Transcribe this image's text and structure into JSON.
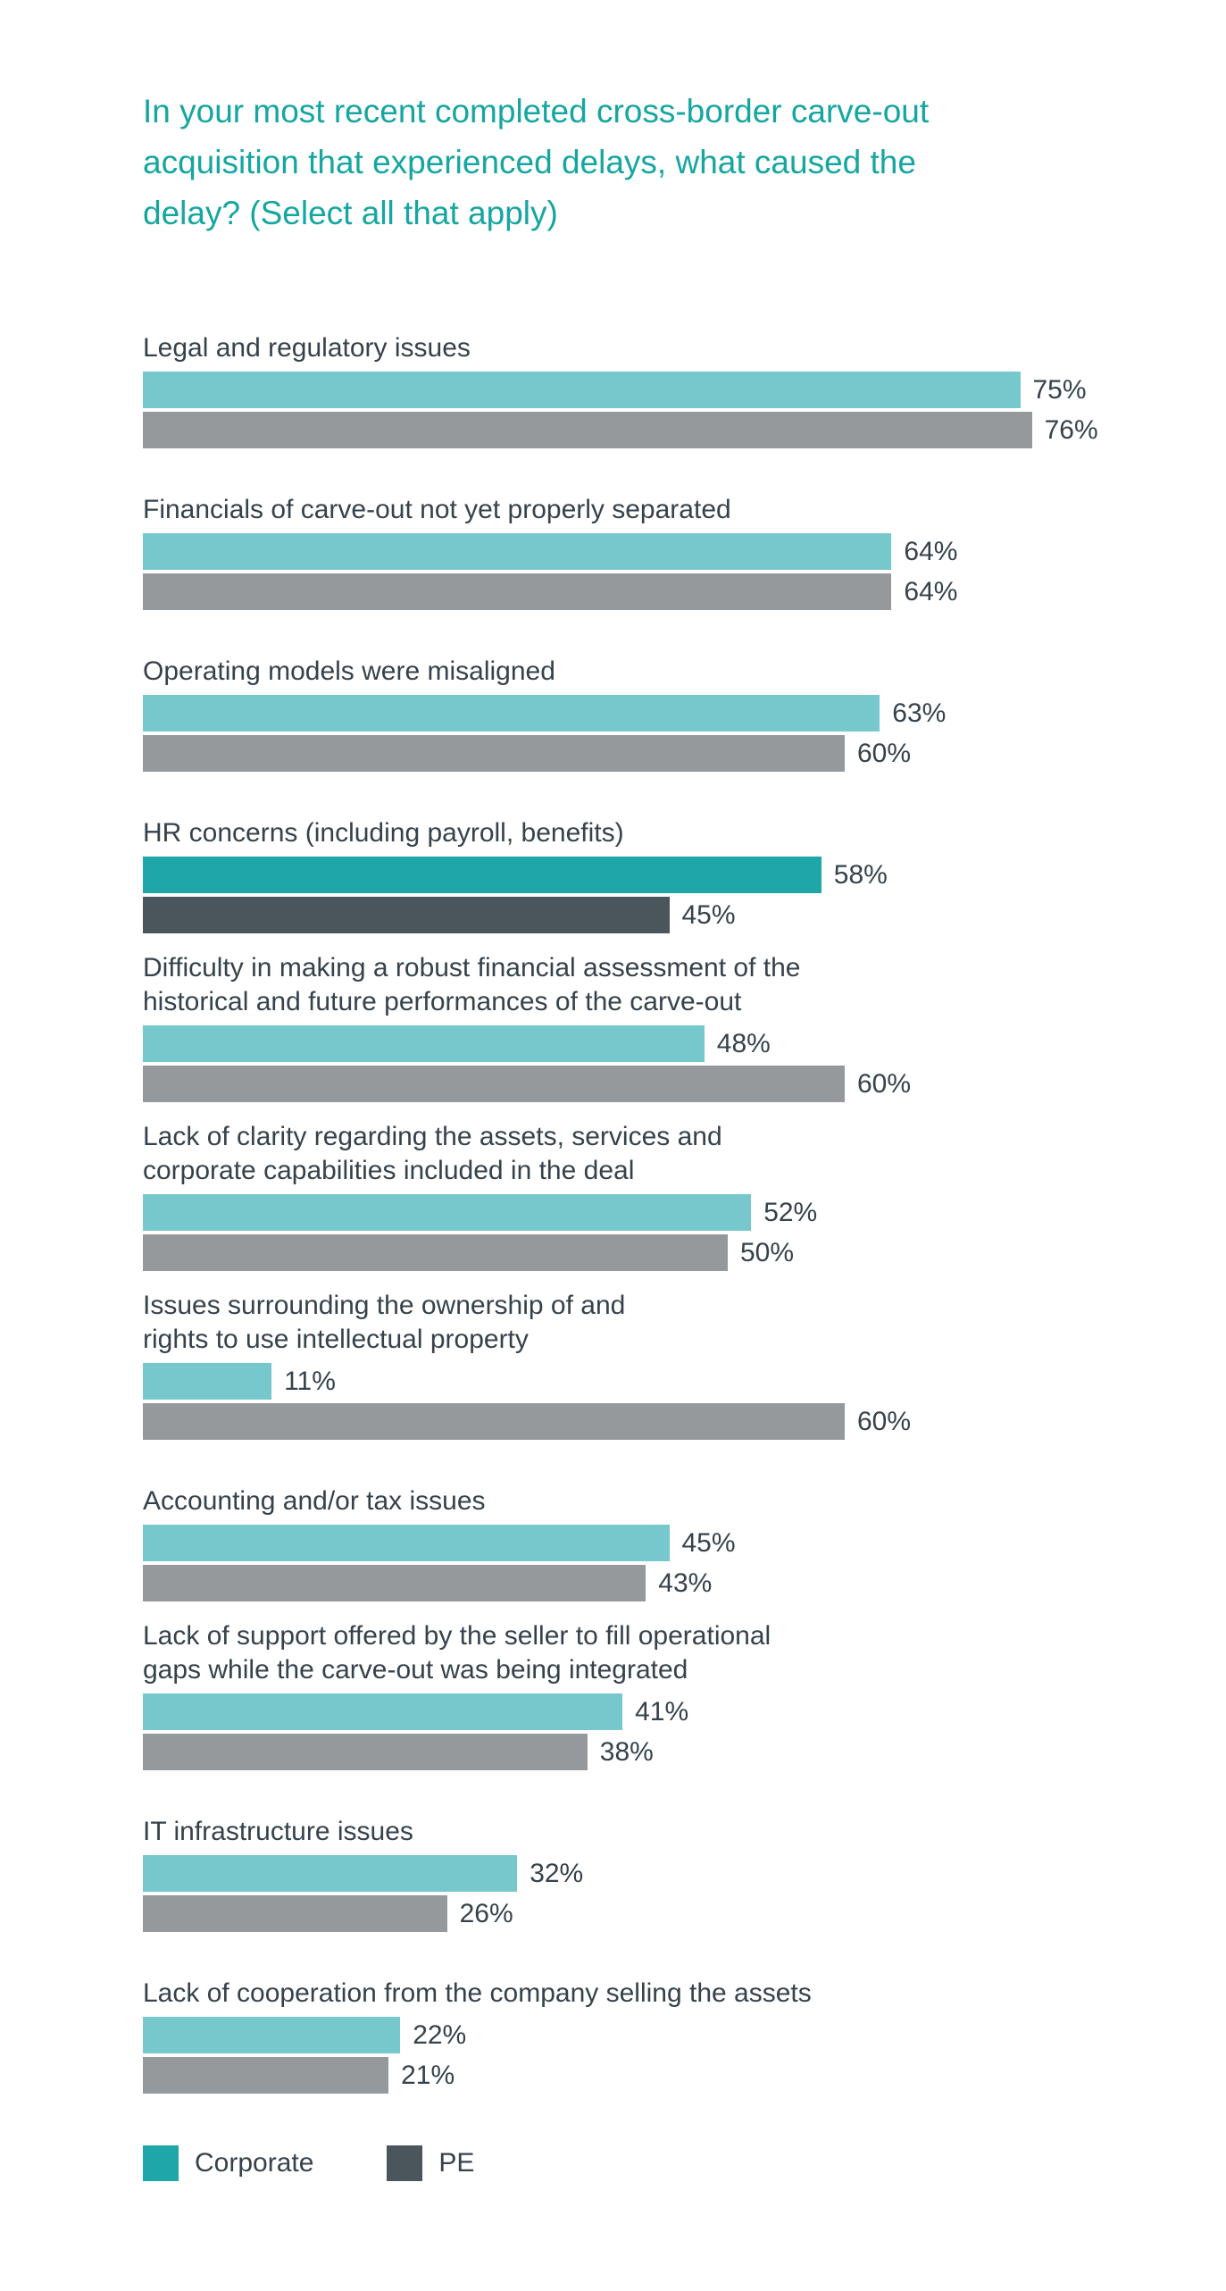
{
  "title": {
    "lines": [
      "In your most recent completed cross-border carve-out",
      "acquisition that experienced delays, what caused the",
      "delay? (Select all that apply)"
    ],
    "full": "In your most recent completed cross-border carve-out acquisition that experienced delays, what caused the delay? (Select all that apply)"
  },
  "colors": {
    "title_teal": "#16A6A0",
    "text": "#36424B",
    "corporate": "#76C8CC",
    "pe": "#95999C",
    "corporate_highlight": "#1EA6A8",
    "pe_highlight": "#4B555C",
    "background": "#FFFFFF"
  },
  "legend": {
    "items": [
      {
        "label": "Corporate",
        "color": "#1EA6A8"
      },
      {
        "label": "PE",
        "color": "#4B555C"
      }
    ]
  },
  "chart_data": {
    "type": "bar",
    "orientation": "horizontal",
    "unit": "%",
    "value_axis_range": [
      0,
      100
    ],
    "grid": false,
    "legend_position": "bottom",
    "series_names": [
      "Corporate",
      "PE"
    ],
    "categories": [
      "Legal and regulatory issues",
      "Financials of carve-out not yet properly separated",
      "Operating models were misaligned",
      "HR concerns (including payroll, benefits)",
      "Difficulty in making a robust financial assessment of the historical and future performances of the carve-out",
      "Lack of clarity regarding the assets, services and corporate capabilities included in the deal",
      "Issues surrounding the ownership of and rights to use intellectual property",
      "Accounting and/or tax issues",
      "Lack of support offered by the seller to fill operational gaps while the carve-out was being integrated",
      "IT infrastructure issues",
      "Lack of cooperation from the company selling the assets"
    ],
    "series": [
      {
        "name": "Corporate",
        "values": [
          75,
          64,
          63,
          58,
          48,
          52,
          11,
          45,
          41,
          32,
          22
        ]
      },
      {
        "name": "PE",
        "values": [
          76,
          64,
          60,
          45,
          60,
          50,
          60,
          43,
          38,
          26,
          21
        ]
      }
    ],
    "highlighted_category": "HR concerns (including payroll, benefits)",
    "rows": [
      {
        "label_lines": [
          "Legal and regulatory issues"
        ],
        "corporate": 75,
        "pe": 76,
        "corporate_label": "75%",
        "pe_label": "76%",
        "highlight": false
      },
      {
        "label_lines": [
          "Financials of carve-out not yet properly separated"
        ],
        "corporate": 64,
        "pe": 64,
        "corporate_label": "64%",
        "pe_label": "64%",
        "highlight": false
      },
      {
        "label_lines": [
          "Operating models were misaligned"
        ],
        "corporate": 63,
        "pe": 60,
        "corporate_label": "63%",
        "pe_label": "60%",
        "highlight": false
      },
      {
        "label_lines": [
          "HR concerns (including payroll, benefits)"
        ],
        "corporate": 58,
        "pe": 45,
        "corporate_label": "58%",
        "pe_label": "45%",
        "highlight": true
      },
      {
        "label_lines": [
          "Difficulty in making a robust financial assessment of the",
          "historical and future performances of the carve-out"
        ],
        "corporate": 48,
        "pe": 60,
        "corporate_label": "48%",
        "pe_label": "60%",
        "highlight": false
      },
      {
        "label_lines": [
          "Lack of clarity regarding the assets, services and",
          "corporate capabilities included in the deal"
        ],
        "corporate": 52,
        "pe": 50,
        "corporate_label": "52%",
        "pe_label": "50%",
        "highlight": false
      },
      {
        "label_lines": [
          "Issues surrounding the ownership of and",
          "rights to use intellectual property"
        ],
        "corporate": 11,
        "pe": 60,
        "corporate_label": "11%",
        "pe_label": "60%",
        "highlight": false
      },
      {
        "label_lines": [
          "Accounting and/or tax issues"
        ],
        "corporate": 45,
        "pe": 43,
        "corporate_label": "45%",
        "pe_label": "43%",
        "highlight": false
      },
      {
        "label_lines": [
          "Lack of support offered by the seller to fill operational",
          "gaps while the carve-out was being integrated"
        ],
        "corporate": 41,
        "pe": 38,
        "corporate_label": "41%",
        "pe_label": "38%",
        "highlight": false
      },
      {
        "label_lines": [
          "IT infrastructure issues"
        ],
        "corporate": 32,
        "pe": 26,
        "corporate_label": "32%",
        "pe_label": "26%",
        "highlight": false
      },
      {
        "label_lines": [
          "Lack of cooperation from the company selling the assets"
        ],
        "corporate": 22,
        "pe": 21,
        "corporate_label": "22%",
        "pe_label": "21%",
        "highlight": false
      }
    ]
  }
}
